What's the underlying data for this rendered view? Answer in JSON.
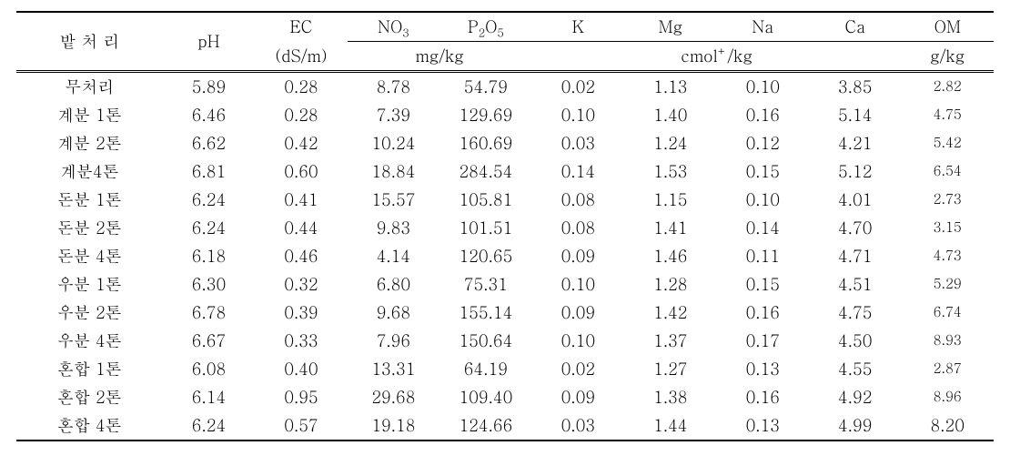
{
  "table": {
    "headers": {
      "treatment": "밭 처 리",
      "ph": "pH",
      "ec": "EC",
      "ec_unit": "(dS/m)",
      "no3": "NO",
      "no3_sub": "3",
      "p2o5_p": "P",
      "p2o5_2": "2",
      "p2o5_o": "O",
      "p2o5_5": "5",
      "mgkg": "mg/kg",
      "k": "K",
      "mg": "Mg",
      "na": "Na",
      "ca": "Ca",
      "cmol_pre": "cmol",
      "cmol_sup": "+",
      "cmol_post": "/kg",
      "om": "OM",
      "gkg": "g/kg"
    },
    "rows": [
      {
        "t": "무처리",
        "ph": "5.89",
        "ec": "0.28",
        "no3": "8.78",
        "p2o5": "54.79",
        "k": "0.02",
        "mg": "1.13",
        "na": "0.10",
        "ca": "3.85",
        "om": "2.82",
        "om_small": true
      },
      {
        "t": "계분 1톤",
        "ph": "6.46",
        "ec": "0.28",
        "no3": "7.39",
        "p2o5": "129.69",
        "k": "0.10",
        "mg": "1.40",
        "na": "0.16",
        "ca": "5.14",
        "om": "4.75",
        "om_small": true
      },
      {
        "t": "계분 2톤",
        "ph": "6.62",
        "ec": "0.42",
        "no3": "10.24",
        "p2o5": "160.69",
        "k": "0.03",
        "mg": "1.24",
        "na": "0.12",
        "ca": "4.21",
        "om": "5.42",
        "om_small": true
      },
      {
        "t": "계분4톤",
        "ph": "6.81",
        "ec": "0.60",
        "no3": "18.84",
        "p2o5": "284.54",
        "k": "0.14",
        "mg": "1.53",
        "na": "0.15",
        "ca": "5.12",
        "om": "6.54",
        "om_small": true
      },
      {
        "t": "돈분 1톤",
        "ph": "6.24",
        "ec": "0.41",
        "no3": "15.57",
        "p2o5": "105.81",
        "k": "0.08",
        "mg": "1.15",
        "na": "0.10",
        "ca": "4.01",
        "om": "2.73",
        "om_small": true
      },
      {
        "t": "돈분 2톤",
        "ph": "6.24",
        "ec": "0.44",
        "no3": "9.83",
        "p2o5": "101.51",
        "k": "0.08",
        "mg": "1.41",
        "na": "0.14",
        "ca": "4.70",
        "om": "3.15",
        "om_small": true
      },
      {
        "t": "돈분 4톤",
        "ph": "6.18",
        "ec": "0.46",
        "no3": "4.14",
        "p2o5": "120.65",
        "k": "0.09",
        "mg": "1.46",
        "na": "0.11",
        "ca": "4.71",
        "om": "4.73",
        "om_small": true
      },
      {
        "t": "우분 1톤",
        "ph": "6.30",
        "ec": "0.32",
        "no3": "6.80",
        "p2o5": "75.31",
        "k": "0.10",
        "mg": "1.28",
        "na": "0.15",
        "ca": "4.51",
        "om": "5.29",
        "om_small": true
      },
      {
        "t": "우분 2톤",
        "ph": "6.78",
        "ec": "0.39",
        "no3": "9.68",
        "p2o5": "155.14",
        "k": "0.09",
        "mg": "1.42",
        "na": "0.16",
        "ca": "4.75",
        "om": "6.74",
        "om_small": true
      },
      {
        "t": "우분 4톤",
        "ph": "6.67",
        "ec": "0.33",
        "no3": "7.96",
        "p2o5": "150.64",
        "k": "0.10",
        "mg": "1.37",
        "na": "0.17",
        "ca": "4.50",
        "om": "8.93",
        "om_small": true
      },
      {
        "t": "혼합 1톤",
        "ph": "6.08",
        "ec": "0.40",
        "no3": "13.31",
        "p2o5": "64.19",
        "k": "0.02",
        "mg": "1.27",
        "na": "0.13",
        "ca": "4.55",
        "om": "2.87",
        "om_small": true
      },
      {
        "t": "혼합 2톤",
        "ph": "6.14",
        "ec": "0.95",
        "no3": "29.68",
        "p2o5": "109.40",
        "k": "0.09",
        "mg": "1.38",
        "na": "0.16",
        "ca": "4.92",
        "om": "8.96",
        "om_small": true
      },
      {
        "t": "혼합 4톤",
        "ph": "6.24",
        "ec": "0.57",
        "no3": "19.18",
        "p2o5": "124.66",
        "k": "0.03",
        "mg": "1.44",
        "na": "0.13",
        "ca": "4.99",
        "om": "8.20",
        "om_small": false
      }
    ]
  }
}
